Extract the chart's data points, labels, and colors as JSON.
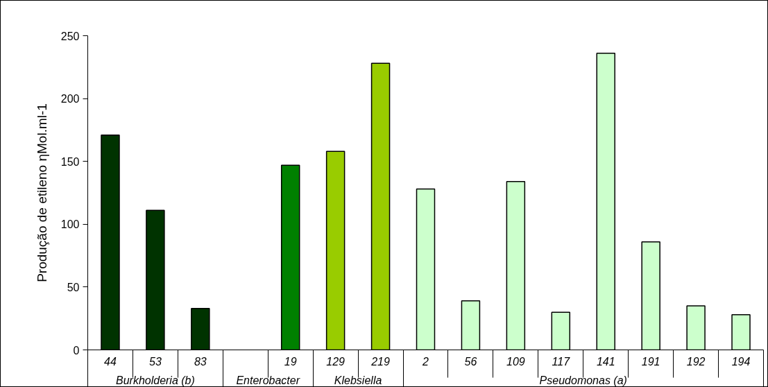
{
  "chart_data": {
    "type": "bar",
    "ylabel": "Produção de etileno ηMol.ml-1",
    "categories": [
      "44",
      "53",
      "83",
      null,
      "19",
      "129",
      "219",
      "2",
      "56",
      "109",
      "117",
      "141",
      "191",
      "192",
      "194"
    ],
    "values": [
      171,
      111,
      33,
      null,
      147,
      158,
      228,
      128,
      39,
      134,
      30,
      236,
      86,
      35,
      28
    ],
    "colors": [
      "#003300",
      "#003300",
      "#003300",
      "#008000",
      "#008000",
      "#99cc00",
      "#99cc00",
      "#ccffcc",
      "#ccffcc",
      "#ccffcc",
      "#ccffcc",
      "#ccffcc",
      "#ccffcc",
      "#ccffcc",
      "#ccffcc"
    ],
    "annotations": [
      "Burkholderia (b)",
      "Enterobacter",
      "Klebsiella",
      "Pseudomonas (a)"
    ],
    "ylim": [
      0,
      250
    ],
    "yticks": [
      0,
      50,
      100,
      150,
      200,
      250
    ],
    "grid": false
  }
}
